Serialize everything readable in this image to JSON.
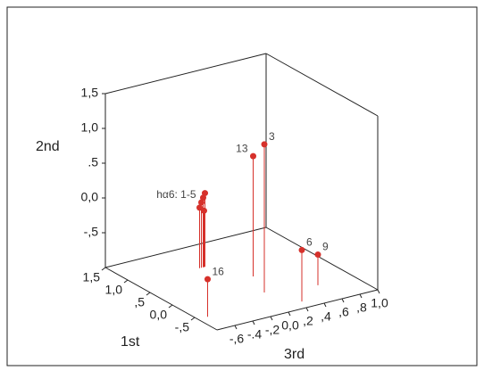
{
  "chart_data": {
    "type": "scatter3d",
    "xlabel": "1st",
    "ylabel": "2nd",
    "zlabel": "3rd",
    "xlim": [
      1.5,
      -1.0
    ],
    "ylim": [
      -1.0,
      1.5
    ],
    "zlim": [
      -0.8,
      1.0
    ],
    "xticks": [
      {
        "value": 1.5,
        "label": "1,5"
      },
      {
        "value": 1.0,
        "label": "1,0"
      },
      {
        "value": 0.5,
        "label": ",5"
      },
      {
        "value": 0.0,
        "label": "0,0"
      },
      {
        "value": -0.5,
        "label": "-,5"
      }
    ],
    "yticks": [
      {
        "value": 1.5,
        "label": "1,5"
      },
      {
        "value": 1.0,
        "label": "1,0"
      },
      {
        "value": 0.5,
        "label": ".5"
      },
      {
        "value": 0.0,
        "label": "0,0"
      },
      {
        "value": -0.5,
        "label": "-,5"
      }
    ],
    "zticks": [
      {
        "value": -0.6,
        "label": "-,6"
      },
      {
        "value": -0.4,
        "label": "-.4"
      },
      {
        "value": -0.2,
        "label": "-,2"
      },
      {
        "value": 0.0,
        "label": "0,0"
      },
      {
        "value": 0.2,
        "label": ",2"
      },
      {
        "value": 0.4,
        "label": ",4"
      },
      {
        "value": 0.6,
        "label": ",6"
      },
      {
        "value": 0.8,
        "label": ",8"
      },
      {
        "value": 1.0,
        "label": "1,0"
      }
    ],
    "color": "#d6312b",
    "x": [
      -0.29,
      0.23,
      0.83,
      0.83,
      0.83,
      0.83,
      0.83,
      -0.57,
      -0.8,
      -0.46
    ],
    "y": [
      1.13,
      0.73,
      0.06,
      0.0,
      -0.06,
      -0.13,
      -0.19,
      -0.46,
      -0.26,
      -0.56
    ],
    "z": [
      0.085,
      0.22,
      -0.02,
      -0.04,
      -0.06,
      -0.08,
      -0.03,
      -0.69,
      0.25,
      0.6
    ],
    "labels": [
      "3",
      "13",
      null,
      null,
      "hα6: 1-5",
      null,
      null,
      "16",
      "6",
      "9"
    ]
  }
}
